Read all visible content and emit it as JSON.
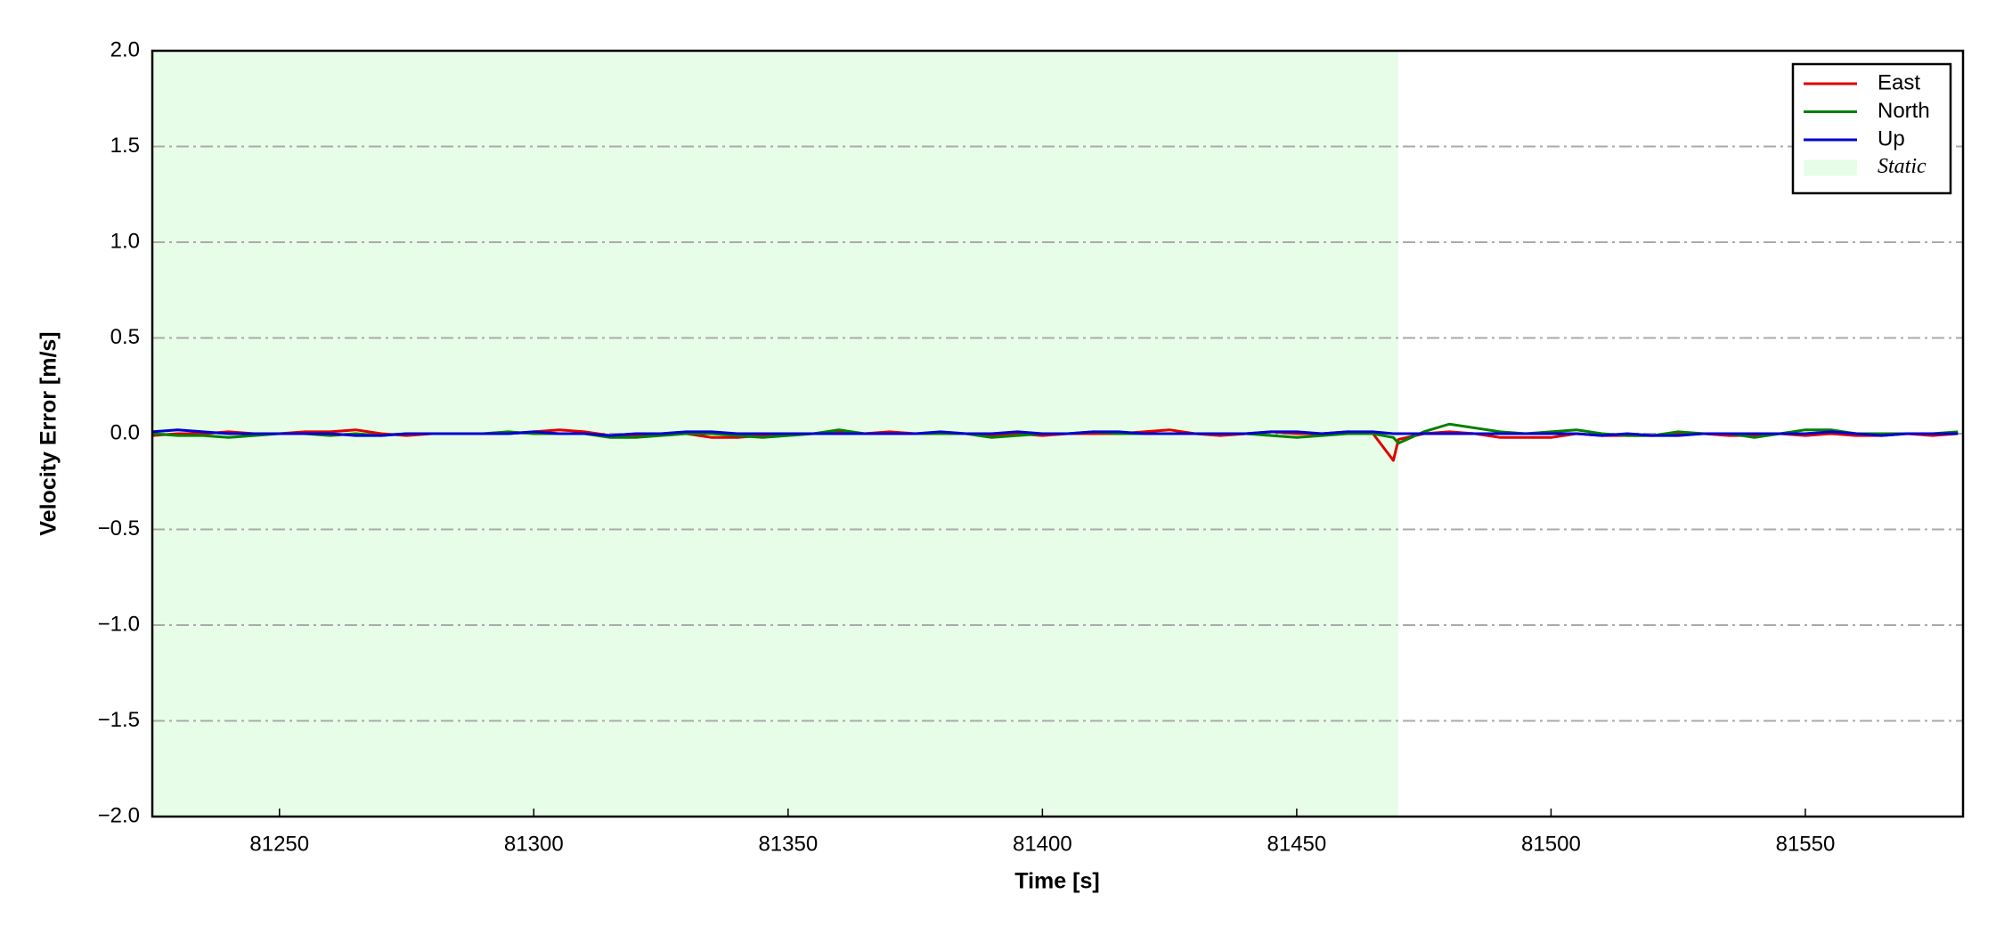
{
  "chart_data": {
    "type": "line",
    "xlabel": "Time [s]",
    "ylabel": "Velocity Error [m/s]",
    "x": [
      81225,
      81230,
      81235,
      81240,
      81245,
      81250,
      81255,
      81260,
      81265,
      81270,
      81275,
      81280,
      81285,
      81290,
      81295,
      81300,
      81305,
      81310,
      81315,
      81320,
      81325,
      81330,
      81335,
      81340,
      81345,
      81350,
      81355,
      81360,
      81365,
      81370,
      81375,
      81380,
      81385,
      81390,
      81395,
      81400,
      81405,
      81410,
      81415,
      81420,
      81425,
      81430,
      81435,
      81440,
      81445,
      81450,
      81455,
      81460,
      81465,
      81469,
      81470,
      81475,
      81480,
      81485,
      81490,
      81495,
      81500,
      81505,
      81510,
      81515,
      81520,
      81525,
      81530,
      81535,
      81540,
      81545,
      81550,
      81555,
      81560,
      81565,
      81570,
      81575,
      81580
    ],
    "series": [
      {
        "name": "East",
        "color": "#e00000",
        "values": [
          -0.01,
          0.0,
          0.0,
          0.01,
          0.0,
          0.0,
          0.01,
          0.01,
          0.02,
          0.0,
          -0.01,
          0.0,
          0.0,
          0.0,
          0.0,
          0.01,
          0.02,
          0.01,
          -0.01,
          -0.01,
          0.0,
          0.0,
          -0.02,
          -0.02,
          -0.01,
          0.0,
          0.0,
          0.01,
          0.0,
          0.01,
          0.0,
          0.0,
          0.0,
          -0.01,
          0.0,
          -0.01,
          0.0,
          0.0,
          0.0,
          0.01,
          0.02,
          0.0,
          -0.01,
          0.0,
          0.01,
          0.0,
          0.0,
          0.01,
          0.0,
          -0.14,
          -0.03,
          0.0,
          0.01,
          0.0,
          -0.02,
          -0.02,
          -0.02,
          0.0,
          -0.01,
          -0.01,
          -0.01,
          0.0,
          0.0,
          -0.01,
          -0.01,
          0.0,
          -0.01,
          0.0,
          -0.01,
          -0.01,
          0.0,
          -0.01,
          0.0
        ]
      },
      {
        "name": "North",
        "color": "#008000",
        "values": [
          0.0,
          -0.01,
          -0.01,
          -0.02,
          -0.01,
          0.0,
          0.0,
          -0.01,
          0.0,
          -0.01,
          0.0,
          0.0,
          0.0,
          0.0,
          0.01,
          0.0,
          0.0,
          0.0,
          -0.02,
          -0.02,
          -0.01,
          0.0,
          0.0,
          -0.01,
          -0.02,
          -0.01,
          0.0,
          0.02,
          0.0,
          0.0,
          0.0,
          0.0,
          0.0,
          -0.02,
          -0.01,
          0.0,
          0.0,
          0.01,
          0.0,
          0.0,
          0.0,
          0.0,
          0.0,
          0.0,
          -0.01,
          -0.02,
          -0.01,
          0.0,
          0.0,
          -0.02,
          -0.05,
          0.01,
          0.05,
          0.03,
          0.01,
          0.0,
          0.01,
          0.02,
          0.0,
          -0.01,
          -0.01,
          0.01,
          0.0,
          0.0,
          -0.02,
          0.0,
          0.02,
          0.02,
          0.0,
          0.0,
          0.0,
          0.0,
          0.01
        ]
      },
      {
        "name": "Up",
        "color": "#0000d0",
        "values": [
          0.01,
          0.02,
          0.01,
          0.0,
          0.0,
          0.0,
          0.0,
          0.0,
          -0.01,
          -0.01,
          0.0,
          0.0,
          0.0,
          0.0,
          0.0,
          0.01,
          0.0,
          0.0,
          -0.01,
          0.0,
          0.0,
          0.01,
          0.01,
          0.0,
          0.0,
          0.0,
          0.0,
          0.0,
          0.0,
          0.0,
          0.0,
          0.01,
          0.0,
          0.0,
          0.01,
          0.0,
          0.0,
          0.01,
          0.01,
          0.0,
          0.0,
          0.0,
          0.0,
          0.0,
          0.01,
          0.01,
          0.0,
          0.01,
          0.01,
          0.0,
          0.0,
          0.0,
          0.0,
          0.0,
          0.0,
          0.0,
          0.0,
          0.0,
          -0.01,
          0.0,
          -0.01,
          -0.01,
          0.0,
          0.0,
          0.0,
          0.0,
          0.0,
          0.01,
          0.0,
          -0.01,
          0.0,
          0.0,
          0.0
        ]
      }
    ],
    "shaded": {
      "label": "Static",
      "xrange": [
        81225,
        81470
      ],
      "color": "#e8fde8"
    },
    "xlim": [
      81225,
      81581
    ],
    "ylim": [
      -2.0,
      2.0
    ],
    "xticks": [
      81250,
      81300,
      81350,
      81400,
      81450,
      81500,
      81550
    ],
    "yticks": [
      {
        "value": -2.0,
        "label": "−2.0"
      },
      {
        "value": -1.5,
        "label": "−1.5"
      },
      {
        "value": -1.0,
        "label": "−1.0"
      },
      {
        "value": -0.5,
        "label": "−0.5"
      },
      {
        "value": 0.0,
        "label": "0.0"
      },
      {
        "value": 0.5,
        "label": "0.5"
      },
      {
        "value": 1.0,
        "label": "1.0"
      },
      {
        "value": 1.5,
        "label": "1.5"
      },
      {
        "value": 2.0,
        "label": "2.0"
      }
    ],
    "grid": true,
    "legend": "upper right"
  }
}
